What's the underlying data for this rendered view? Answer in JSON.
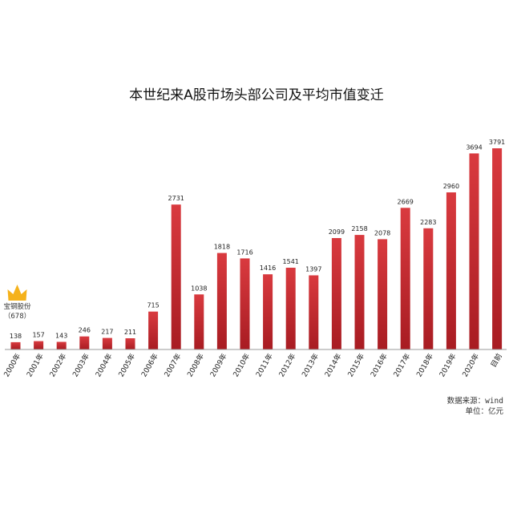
{
  "chart_data": {
    "type": "bar",
    "title": "本世纪来A股市场头部公司及平均市值变迁",
    "categories": [
      "2000年",
      "2001年",
      "2002年",
      "2003年",
      "2004年",
      "2005年",
      "2006年",
      "2007年",
      "2008年",
      "2009年",
      "2010年",
      "2011年",
      "2012年",
      "2013年",
      "2014年",
      "2015年",
      "2016年",
      "2017年",
      "2018年",
      "2019年",
      "2020年",
      "目前"
    ],
    "values": [
      138,
      157,
      143,
      246,
      217,
      211,
      715,
      2731,
      1038,
      1818,
      1716,
      1416,
      1541,
      1397,
      2099,
      2158,
      2078,
      2669,
      2283,
      2960,
      3694,
      3791
    ],
    "ylim": [
      0,
      3791
    ],
    "grid": false,
    "legend": "none",
    "bar_color": "#c8272d",
    "annotation": {
      "category": "2000年",
      "name": "宝钢股份",
      "value": "（678）",
      "icon": "crown-icon",
      "color": "#f5b21b"
    }
  },
  "footer": {
    "source": "数据来源：wind",
    "unit": "单位：亿元"
  }
}
